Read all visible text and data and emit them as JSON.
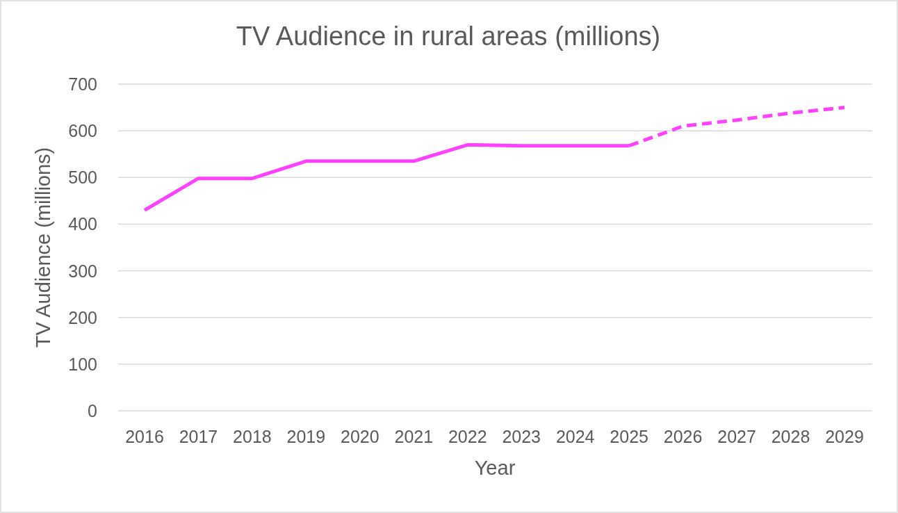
{
  "chart_data": {
    "type": "line",
    "title": "TV Audience in rural areas (millions)",
    "xlabel": "Year",
    "ylabel": "TV Audience (millions)",
    "categories": [
      "2016",
      "2017",
      "2018",
      "2019",
      "2020",
      "2021",
      "2022",
      "2023",
      "2024",
      "2025",
      "2026",
      "2027",
      "2028",
      "2029"
    ],
    "series": [
      {
        "color": "#ff40ff",
        "line_style": "solid",
        "values": [
          430,
          498,
          498,
          535,
          535,
          535,
          570,
          568,
          568,
          568,
          null,
          null,
          null,
          null
        ]
      },
      {
        "color": "#ff40ff",
        "line_style": "dashed",
        "values": [
          null,
          null,
          null,
          null,
          null,
          null,
          null,
          null,
          null,
          568,
          610,
          623,
          638,
          650
        ]
      }
    ],
    "ylim": [
      0,
      700
    ],
    "yticks": [
      0,
      100,
      200,
      300,
      400,
      500,
      600,
      700
    ],
    "grid": "y",
    "marker": "none"
  }
}
